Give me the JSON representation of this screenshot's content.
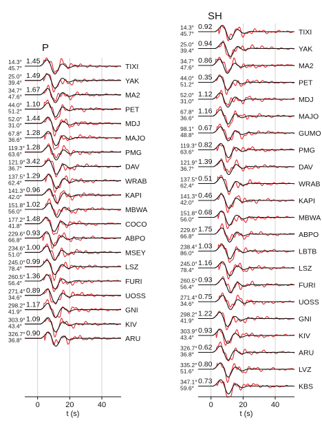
{
  "chart_data": [
    {
      "type": "line",
      "title": "P",
      "xlabel": "t (s)",
      "xlim": [
        -8,
        52
      ],
      "xticks": [
        0,
        20,
        40
      ],
      "grid": "vertical lines at 0, 20, 40",
      "series_colors": {
        "observed": "#e8262b",
        "synthetic": "#111111"
      },
      "stations": [
        {
          "name": "TIXI",
          "azimuth": "14.3°",
          "distance": "45.7°",
          "amplitude": "1.45"
        },
        {
          "name": "YAK",
          "azimuth": "25.0°",
          "distance": "39.4°",
          "amplitude": "1.49"
        },
        {
          "name": "MA2",
          "azimuth": "34.7°",
          "distance": "47.6°",
          "amplitude": "1.67"
        },
        {
          "name": "PET",
          "azimuth": "44.0°",
          "distance": "51.2°",
          "amplitude": "1.10"
        },
        {
          "name": "MDJ",
          "azimuth": "52.0°",
          "distance": "31.0°",
          "amplitude": "1.44"
        },
        {
          "name": "MAJO",
          "azimuth": "67.8°",
          "distance": "36.6°",
          "amplitude": "1.28"
        },
        {
          "name": "PMG",
          "azimuth": "119.3°",
          "distance": "63.6°",
          "amplitude": "1.28"
        },
        {
          "name": "DAV",
          "azimuth": "121.9°",
          "distance": "36.7°",
          "amplitude": "3.42"
        },
        {
          "name": "WRAB",
          "azimuth": "137.5°",
          "distance": "62.4°",
          "amplitude": "1.29"
        },
        {
          "name": "KAPI",
          "azimuth": "141.3°",
          "distance": "42.0°",
          "amplitude": "0.96"
        },
        {
          "name": "MBWA",
          "azimuth": "151.8°",
          "distance": "56.0°",
          "amplitude": "1.02"
        },
        {
          "name": "COCO",
          "azimuth": "177.2°",
          "distance": "41.8°",
          "amplitude": "1.48"
        },
        {
          "name": "ABPO",
          "azimuth": "229.6°",
          "distance": "66.8°",
          "amplitude": "0.93"
        },
        {
          "name": "MSEY",
          "azimuth": "234.6°",
          "distance": "51.0°",
          "amplitude": "1.00"
        },
        {
          "name": "LSZ",
          "azimuth": "245.0°",
          "distance": "78.4°",
          "amplitude": "0.99"
        },
        {
          "name": "FURI",
          "azimuth": "260.5°",
          "distance": "56.4°",
          "amplitude": "1.36"
        },
        {
          "name": "UOSS",
          "azimuth": "271.4°",
          "distance": "34.6°",
          "amplitude": "0.89"
        },
        {
          "name": "GNI",
          "azimuth": "298.2°",
          "distance": "41.9°",
          "amplitude": "1.17"
        },
        {
          "name": "KIV",
          "azimuth": "303.9°",
          "distance": "43.4°",
          "amplitude": "1.09"
        },
        {
          "name": "ARU",
          "azimuth": "326.7°",
          "distance": "36.8°",
          "amplitude": "0.90"
        }
      ]
    },
    {
      "type": "line",
      "title": "SH",
      "xlabel": "t (s)",
      "xlim": [
        -8,
        52
      ],
      "xticks": [
        0,
        20,
        40
      ],
      "grid": "vertical lines at 0, 20, 40",
      "series_colors": {
        "observed": "#e8262b",
        "synthetic": "#111111"
      },
      "stations": [
        {
          "name": "TIXI",
          "azimuth": "14.3°",
          "distance": "45.7°",
          "amplitude": "0.92"
        },
        {
          "name": "YAK",
          "azimuth": "25.0°",
          "distance": "39.4°",
          "amplitude": "0.94"
        },
        {
          "name": "MA2",
          "azimuth": "34.7°",
          "distance": "47.6°",
          "amplitude": "0.86"
        },
        {
          "name": "PET",
          "azimuth": "44.0°",
          "distance": "51.2°",
          "amplitude": "0.35"
        },
        {
          "name": "MDJ",
          "azimuth": "52.0°",
          "distance": "31.0°",
          "amplitude": "1.12"
        },
        {
          "name": "MAJO",
          "azimuth": "67.8°",
          "distance": "36.6°",
          "amplitude": "1.16"
        },
        {
          "name": "GUMO",
          "azimuth": "98.1°",
          "distance": "48.8°",
          "amplitude": "0.67"
        },
        {
          "name": "PMG",
          "azimuth": "119.3°",
          "distance": "63.6°",
          "amplitude": "0.82"
        },
        {
          "name": "DAV",
          "azimuth": "121.9°",
          "distance": "36.7°",
          "amplitude": "1.39"
        },
        {
          "name": "WRAB",
          "azimuth": "137.5°",
          "distance": "62.4°",
          "amplitude": "0.51"
        },
        {
          "name": "KAPI",
          "azimuth": "141.3°",
          "distance": "42.0°",
          "amplitude": "0.46"
        },
        {
          "name": "MBWA",
          "azimuth": "151.8°",
          "distance": "56.0°",
          "amplitude": "0.68"
        },
        {
          "name": "ABPO",
          "azimuth": "229.6°",
          "distance": "66.8°",
          "amplitude": "1.75"
        },
        {
          "name": "LBTB",
          "azimuth": "238.4°",
          "distance": "86.0°",
          "amplitude": "1.03"
        },
        {
          "name": "LSZ",
          "azimuth": "245.0°",
          "distance": "78.4°",
          "amplitude": "1.16"
        },
        {
          "name": "FURI",
          "azimuth": "260.5°",
          "distance": "56.4°",
          "amplitude": "0.93"
        },
        {
          "name": "UOSS",
          "azimuth": "271.4°",
          "distance": "34.6°",
          "amplitude": "0.75"
        },
        {
          "name": "GNI",
          "azimuth": "298.2°",
          "distance": "41.9°",
          "amplitude": "1.22"
        },
        {
          "name": "KIV",
          "azimuth": "303.9°",
          "distance": "43.4°",
          "amplitude": "0.93"
        },
        {
          "name": "ARU",
          "azimuth": "326.7°",
          "distance": "36.8°",
          "amplitude": "0.62"
        },
        {
          "name": "LVZ",
          "azimuth": "335.2°",
          "distance": "51.6°",
          "amplitude": "0.80"
        },
        {
          "name": "KBS",
          "azimuth": "347.1°",
          "distance": "59.6°",
          "amplitude": "0.73"
        }
      ]
    }
  ]
}
